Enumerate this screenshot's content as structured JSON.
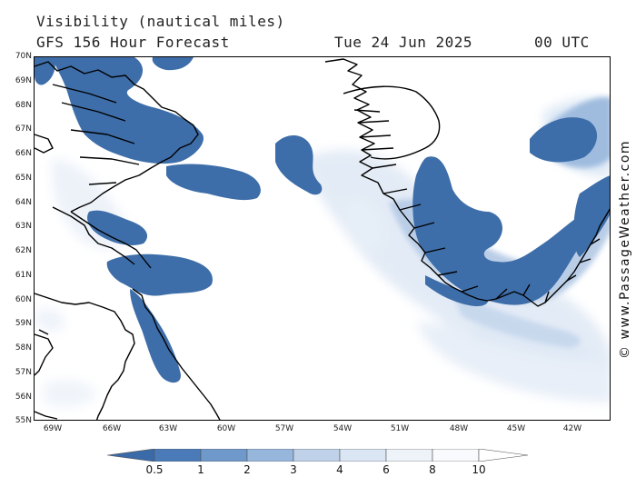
{
  "header": {
    "title": "Visibility (nautical miles)",
    "subtitle": "GFS 156 Hour Forecast",
    "valid_date": "Tue 24 Jun 2025",
    "valid_time": "00 UTC"
  },
  "credit": "© www.PassageWeather.com",
  "lat_labels": [
    "70N",
    "69N",
    "68N",
    "67N",
    "66N",
    "65N",
    "64N",
    "63N",
    "62N",
    "61N",
    "60N",
    "59N",
    "58N",
    "57N",
    "56N",
    "55N"
  ],
  "lon_labels": [
    "69W",
    "66W",
    "63W",
    "60W",
    "57W",
    "54W",
    "51W",
    "48W",
    "45W",
    "42W"
  ],
  "legend": {
    "labels": [
      "0.5",
      "1",
      "2",
      "3",
      "4",
      "6",
      "8",
      "10"
    ],
    "colors": [
      "#3a6aa7",
      "#4a7bb8",
      "#6f98cb",
      "#97b6dc",
      "#bfd2ea",
      "#dbe6f4",
      "#eef3fa",
      "#ffffff"
    ]
  }
}
